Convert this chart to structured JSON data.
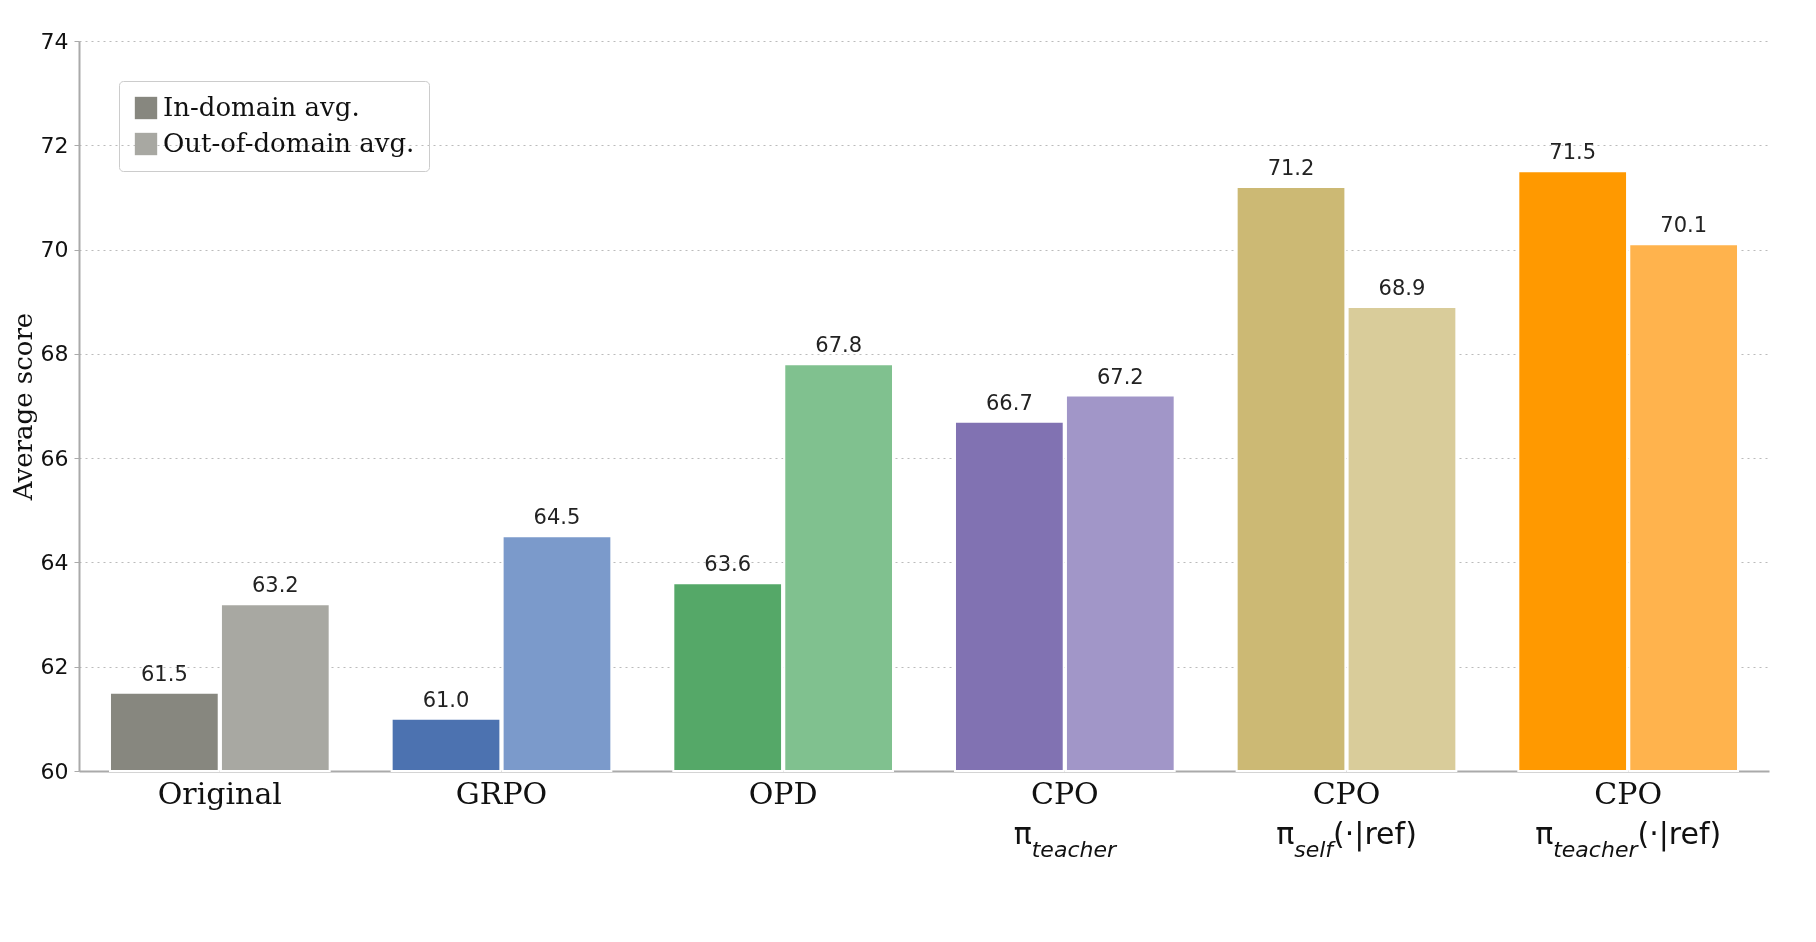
{
  "chart_data": {
    "type": "bar",
    "ylabel": "Average score",
    "categories": [
      "Original",
      "GRPO",
      "OPD",
      "CPO\nπ$_{teacher}$",
      "CPO\nπ$_{self}$(·|ref)",
      "CPO\nπ$_{teacher}$(·|ref)"
    ],
    "series": [
      {
        "name": "In-domain avg.",
        "color": "#87877f",
        "colors": [
          "#87877f",
          "#4c72b0",
          "#55a868",
          "#8172b2",
          "#ccb974",
          "#ff9900"
        ],
        "values": [
          61.5,
          61.0,
          63.6,
          66.7,
          71.2,
          71.5
        ],
        "value_labels": [
          "61.5",
          "61.0",
          "63.6",
          "66.7",
          "71.2",
          "71.5"
        ]
      },
      {
        "name": "Out-of-domain avg.",
        "color": "#a8a8a2",
        "colors": [
          "#a8a8a2",
          "#7b9acb",
          "#80c18f",
          "#a196c8",
          "#d9cc9a",
          "#ffb34d"
        ],
        "values": [
          63.2,
          64.5,
          67.8,
          67.2,
          68.9,
          70.1
        ],
        "value_labels": [
          "63.2",
          "64.5",
          "67.8",
          "67.2",
          "68.9",
          "70.1"
        ]
      }
    ],
    "ylim": [
      60,
      74
    ],
    "yticks": [
      60,
      62,
      64,
      66,
      68,
      70,
      72,
      74
    ],
    "grid": "y",
    "legend": "top left"
  }
}
